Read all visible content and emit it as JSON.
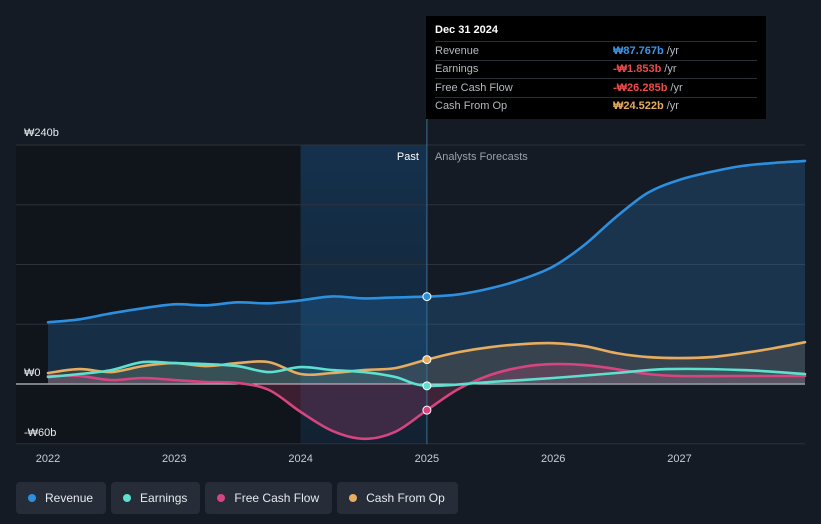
{
  "colors": {
    "revenue": "#2d8fe0",
    "earnings": "#5ee0d0",
    "fcf": "#d6457f",
    "cfo": "#e7ac5f",
    "grid": "#2b323c",
    "text": "#c8cdd4"
  },
  "tooltip": {
    "date": "Dec 31 2024",
    "rows": [
      {
        "label": "Revenue",
        "value": "₩87.767b",
        "unit": "/yr",
        "color": "#3a96ea"
      },
      {
        "label": "Earnings",
        "value": "-₩1.853b",
        "unit": "/yr",
        "color": "#ef4a4a"
      },
      {
        "label": "Free Cash Flow",
        "value": "-₩26.285b",
        "unit": "/yr",
        "color": "#ef4a4a"
      },
      {
        "label": "Cash From Op",
        "value": "₩24.522b",
        "unit": "/yr",
        "color": "#e7ac5f"
      }
    ]
  },
  "legend": [
    {
      "label": "Revenue",
      "color": "#2d8fe0"
    },
    {
      "label": "Earnings",
      "color": "#5ee0d0"
    },
    {
      "label": "Free Cash Flow",
      "color": "#d6457f"
    },
    {
      "label": "Cash From Op",
      "color": "#e7ac5f"
    }
  ],
  "chart_data": {
    "type": "line",
    "title": "",
    "xlabel": "",
    "ylabel": "",
    "x_ticks": [
      "2022",
      "2023",
      "2024",
      "2025",
      "2026",
      "2027"
    ],
    "x_tick_values": [
      2022,
      2023,
      2024,
      2025,
      2026,
      2027
    ],
    "y_tick_labels": [
      "₩240b",
      "₩0",
      "-₩60b"
    ],
    "y_tick_values": [
      240,
      0,
      -60
    ],
    "xlim": [
      2021.79,
      2027.99
    ],
    "ylim": [
      -60,
      240
    ],
    "past_label": "Past",
    "forecast_label": "Analysts Forecasts",
    "split_x": 2025.0,
    "highlight_start_x": 2024.0,
    "series": [
      {
        "name": "Revenue",
        "key": "revenue",
        "points": [
          [
            2022.0,
            62
          ],
          [
            2022.25,
            65
          ],
          [
            2022.5,
            71
          ],
          [
            2022.75,
            76
          ],
          [
            2023.0,
            80
          ],
          [
            2023.25,
            79
          ],
          [
            2023.5,
            82
          ],
          [
            2023.75,
            81
          ],
          [
            2024.0,
            84
          ],
          [
            2024.25,
            88
          ],
          [
            2024.5,
            86
          ],
          [
            2024.75,
            87
          ],
          [
            2025.0,
            87.8
          ],
          [
            2025.25,
            90
          ],
          [
            2025.5,
            96
          ],
          [
            2025.75,
            105
          ],
          [
            2026.0,
            118
          ],
          [
            2026.25,
            140
          ],
          [
            2026.5,
            168
          ],
          [
            2026.75,
            192
          ],
          [
            2027.0,
            205
          ],
          [
            2027.25,
            213
          ],
          [
            2027.5,
            219
          ],
          [
            2027.75,
            222
          ],
          [
            2028.0,
            224
          ]
        ]
      },
      {
        "name": "Earnings",
        "key": "earnings",
        "points": [
          [
            2022.0,
            7
          ],
          [
            2022.25,
            10
          ],
          [
            2022.5,
            14
          ],
          [
            2022.75,
            22
          ],
          [
            2023.0,
            21
          ],
          [
            2023.25,
            20
          ],
          [
            2023.5,
            18
          ],
          [
            2023.75,
            12
          ],
          [
            2024.0,
            17
          ],
          [
            2024.25,
            14
          ],
          [
            2024.5,
            12
          ],
          [
            2024.75,
            7
          ],
          [
            2025.0,
            -1.853
          ],
          [
            2025.5,
            2
          ],
          [
            2026.0,
            6
          ],
          [
            2026.5,
            11
          ],
          [
            2026.9,
            15
          ],
          [
            2027.5,
            14
          ],
          [
            2028.0,
            10
          ]
        ]
      },
      {
        "name": "Free Cash Flow",
        "key": "fcf",
        "points": [
          [
            2022.0,
            8
          ],
          [
            2022.25,
            8
          ],
          [
            2022.5,
            4
          ],
          [
            2022.75,
            6
          ],
          [
            2023.0,
            4
          ],
          [
            2023.25,
            2
          ],
          [
            2023.5,
            1
          ],
          [
            2023.75,
            -6
          ],
          [
            2024.0,
            -28
          ],
          [
            2024.25,
            -47
          ],
          [
            2024.5,
            -55
          ],
          [
            2024.75,
            -48
          ],
          [
            2025.0,
            -26.285
          ],
          [
            2025.25,
            -5
          ],
          [
            2025.5,
            9
          ],
          [
            2025.75,
            17
          ],
          [
            2026.0,
            20
          ],
          [
            2026.25,
            19
          ],
          [
            2026.5,
            15
          ],
          [
            2026.75,
            10
          ],
          [
            2027.0,
            8
          ],
          [
            2027.5,
            8
          ],
          [
            2028.0,
            8
          ]
        ]
      },
      {
        "name": "Cash From Op",
        "key": "cfo",
        "points": [
          [
            2022.0,
            11
          ],
          [
            2022.25,
            15
          ],
          [
            2022.5,
            12
          ],
          [
            2022.75,
            18
          ],
          [
            2023.0,
            21
          ],
          [
            2023.25,
            18
          ],
          [
            2023.5,
            21
          ],
          [
            2023.75,
            22
          ],
          [
            2024.0,
            10
          ],
          [
            2024.25,
            11
          ],
          [
            2024.5,
            14
          ],
          [
            2024.75,
            16
          ],
          [
            2025.0,
            24.522
          ],
          [
            2025.25,
            32
          ],
          [
            2025.5,
            37
          ],
          [
            2025.75,
            40
          ],
          [
            2026.0,
            41
          ],
          [
            2026.25,
            38
          ],
          [
            2026.5,
            31
          ],
          [
            2026.75,
            27
          ],
          [
            2027.0,
            26
          ],
          [
            2027.25,
            27
          ],
          [
            2027.5,
            31
          ],
          [
            2027.75,
            36
          ],
          [
            2028.0,
            42
          ]
        ]
      }
    ]
  }
}
